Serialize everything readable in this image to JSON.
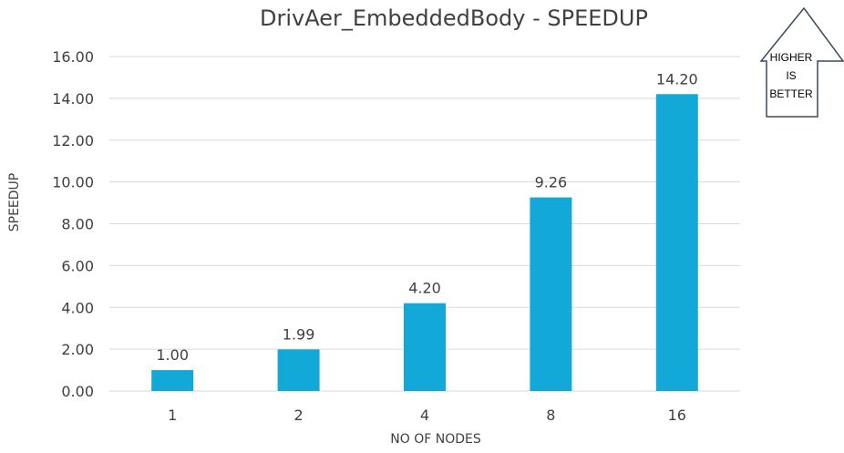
{
  "chart_data": {
    "type": "bar",
    "title": "DrivAer_EmbeddedBody - SPEEDUP",
    "xlabel": "NO OF NODES",
    "ylabel": "SPEEDUP",
    "categories": [
      "1",
      "2",
      "4",
      "8",
      "16"
    ],
    "values": [
      1.0,
      1.99,
      4.2,
      9.26,
      14.2
    ],
    "ylim": [
      0,
      16
    ],
    "ytick_step": 2,
    "grid": true,
    "bar_color": "#12a9d9",
    "annotation": {
      "lines": [
        "HIGHER",
        "IS",
        "BETTER"
      ]
    }
  }
}
